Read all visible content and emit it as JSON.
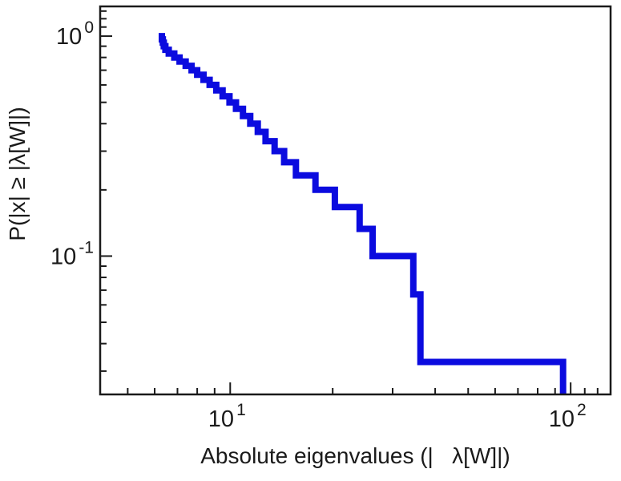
{
  "figure": {
    "background": "#ffffff",
    "frame_color": "#1a1a1a",
    "text_color": "#1a1a1a"
  },
  "chart_data": {
    "type": "line",
    "subtype": "ccdf-step",
    "title": "",
    "xlabel": "Absolute eigenvalues (|   λ[W]|)",
    "ylabel": "P(|x| ≥ |λ[W]|)",
    "xscale": "log",
    "yscale": "log",
    "xlim": [
      4.15,
      131
    ],
    "ylim": [
      0.0235,
      1.365
    ],
    "grid": false,
    "legend": "none",
    "line_color": "#0b0bdf",
    "line_width": 8,
    "n_samples": 30,
    "eigenvalues": [
      6.3,
      6.34,
      6.38,
      6.45,
      6.6,
      6.85,
      7.1,
      7.4,
      7.7,
      8.0,
      8.35,
      8.7,
      9.1,
      9.5,
      9.95,
      10.4,
      10.9,
      11.45,
      12.05,
      12.7,
      13.5,
      14.4,
      15.6,
      17.8,
      20.3,
      24.0,
      26.2,
      34.5,
      36.2,
      95.0
    ],
    "survival_after_each": [
      0.967,
      0.933,
      0.9,
      0.867,
      0.833,
      0.8,
      0.767,
      0.733,
      0.7,
      0.667,
      0.633,
      0.6,
      0.567,
      0.533,
      0.5,
      0.467,
      0.433,
      0.4,
      0.367,
      0.333,
      0.3,
      0.267,
      0.233,
      0.2,
      0.167,
      0.133,
      0.1,
      0.067,
      0.033,
      0.0
    ],
    "x_ticks_major": [
      {
        "value": 10,
        "base": "10",
        "exp": "1"
      },
      {
        "value": 100,
        "base": "10",
        "exp": "2"
      }
    ],
    "x_ticks_minor": [
      5,
      6,
      7,
      8,
      9,
      20,
      30,
      40,
      50,
      60,
      70,
      80,
      90,
      110,
      120
    ],
    "y_ticks_major": [
      {
        "value": 1,
        "base": "10",
        "exp": "0"
      },
      {
        "value": 0.1,
        "base": "10",
        "exp": "-1"
      }
    ],
    "y_ticks_minor": [
      1.3,
      1.2,
      1.1,
      0.9,
      0.8,
      0.7,
      0.6,
      0.5,
      0.4,
      0.3,
      0.2,
      0.09,
      0.08,
      0.07,
      0.06,
      0.05,
      0.04,
      0.03
    ]
  }
}
